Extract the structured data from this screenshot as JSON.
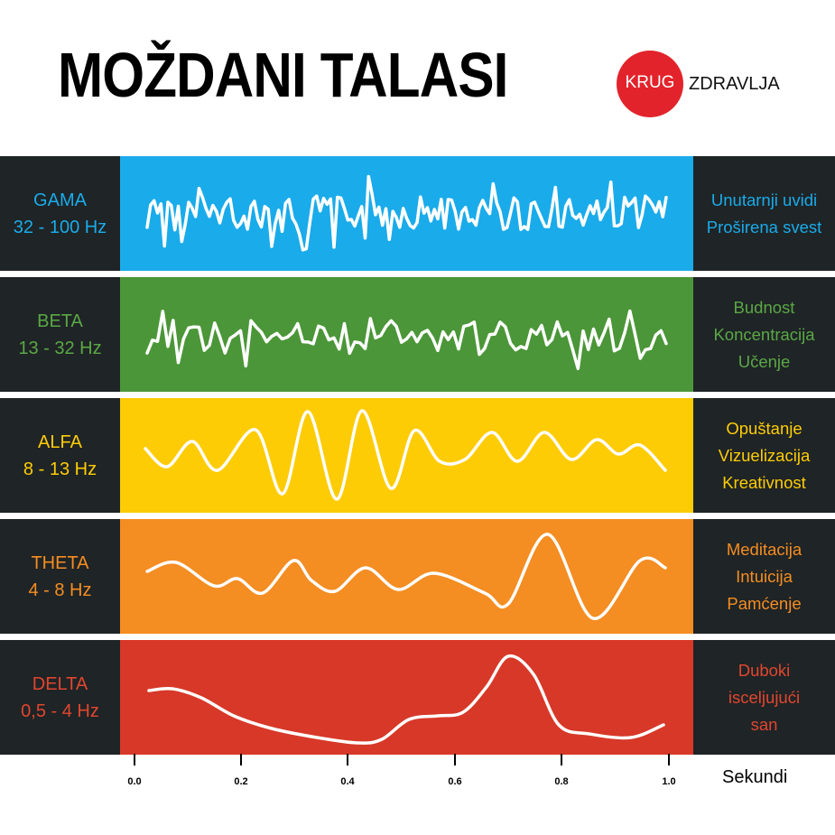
{
  "title": "MOŽDANI TALASI",
  "logo": {
    "circle_text": "KRUG",
    "side_text": "ZDRAVLJA",
    "color": "#e3232b"
  },
  "waves": [
    {
      "name": "GAMA",
      "range": "32 - 100 Hz",
      "color": "#1aabea",
      "label_color": "#1aabea",
      "descriptions": [
        "Unutarnji uvidi",
        "Proširena svest"
      ]
    },
    {
      "name": "BETA",
      "range": "13 - 32 Hz",
      "color": "#4b9638",
      "label_color": "#5aa845",
      "descriptions": [
        "Budnost",
        "Koncentracija",
        "Učenje"
      ]
    },
    {
      "name": "ALFA",
      "range": "8 - 13 Hz",
      "color": "#fdcc05",
      "label_color": "#fdcc05",
      "descriptions": [
        "Opuštanje",
        "Vizuelizacija",
        "Kreativnost"
      ]
    },
    {
      "name": "THETA",
      "range": "4 - 8 Hz",
      "color": "#f48d22",
      "label_color": "#f48d22",
      "descriptions": [
        "Meditacija",
        "Intuicija",
        "Pamćenje"
      ]
    },
    {
      "name": "DELTA",
      "range": "0,5 - 4 Hz",
      "color": "#d73828",
      "label_color": "#e2462f",
      "descriptions": [
        "Duboki",
        "isceljujući",
        "san"
      ]
    }
  ],
  "axis": {
    "ticks": [
      "0.0",
      "0.2",
      "0.4",
      "0.6",
      "0.8",
      "1.0"
    ],
    "unit": "Sekundi"
  },
  "side_color": "#1f2426"
}
